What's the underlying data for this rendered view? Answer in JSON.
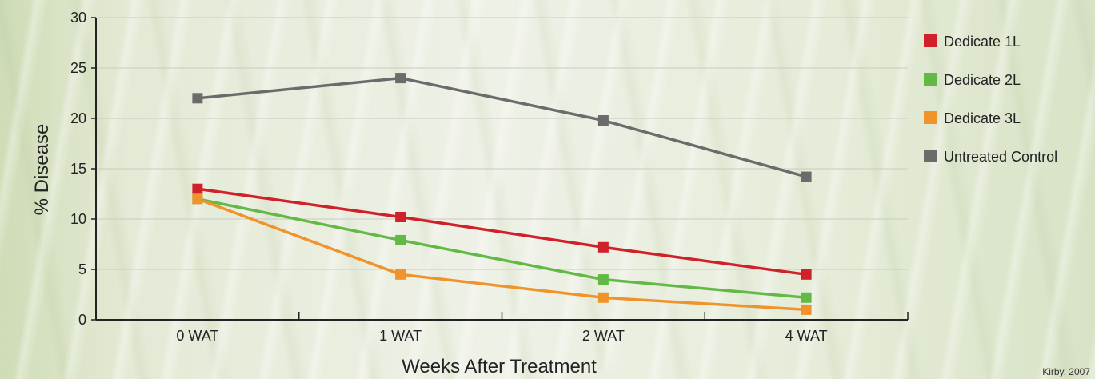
{
  "chart_data": {
    "type": "line",
    "categories": [
      "0 WAT",
      "1 WAT",
      "2 WAT",
      "4 WAT"
    ],
    "xlabel": "Weeks After Treatment",
    "ylabel": "% Disease",
    "ylim": [
      0,
      30
    ],
    "yticks": [
      0,
      5,
      10,
      15,
      20,
      25,
      30
    ],
    "grid": true,
    "legend_position": "right",
    "series": [
      {
        "name": "Dedicate 1L",
        "color": "#d0202a",
        "values": [
          13,
          10.2,
          7.2,
          4.5
        ]
      },
      {
        "name": "Dedicate 2L",
        "color": "#62b946",
        "values": [
          12,
          7.9,
          4,
          2.2
        ]
      },
      {
        "name": "Dedicate 3L",
        "color": "#f0932a",
        "values": [
          12,
          4.5,
          2.2,
          1
        ]
      },
      {
        "name": "Untreated Control",
        "color": "#6b6b6b",
        "values": [
          22,
          24,
          19.8,
          14.2
        ]
      }
    ]
  },
  "credit": "Kirby, 2007"
}
